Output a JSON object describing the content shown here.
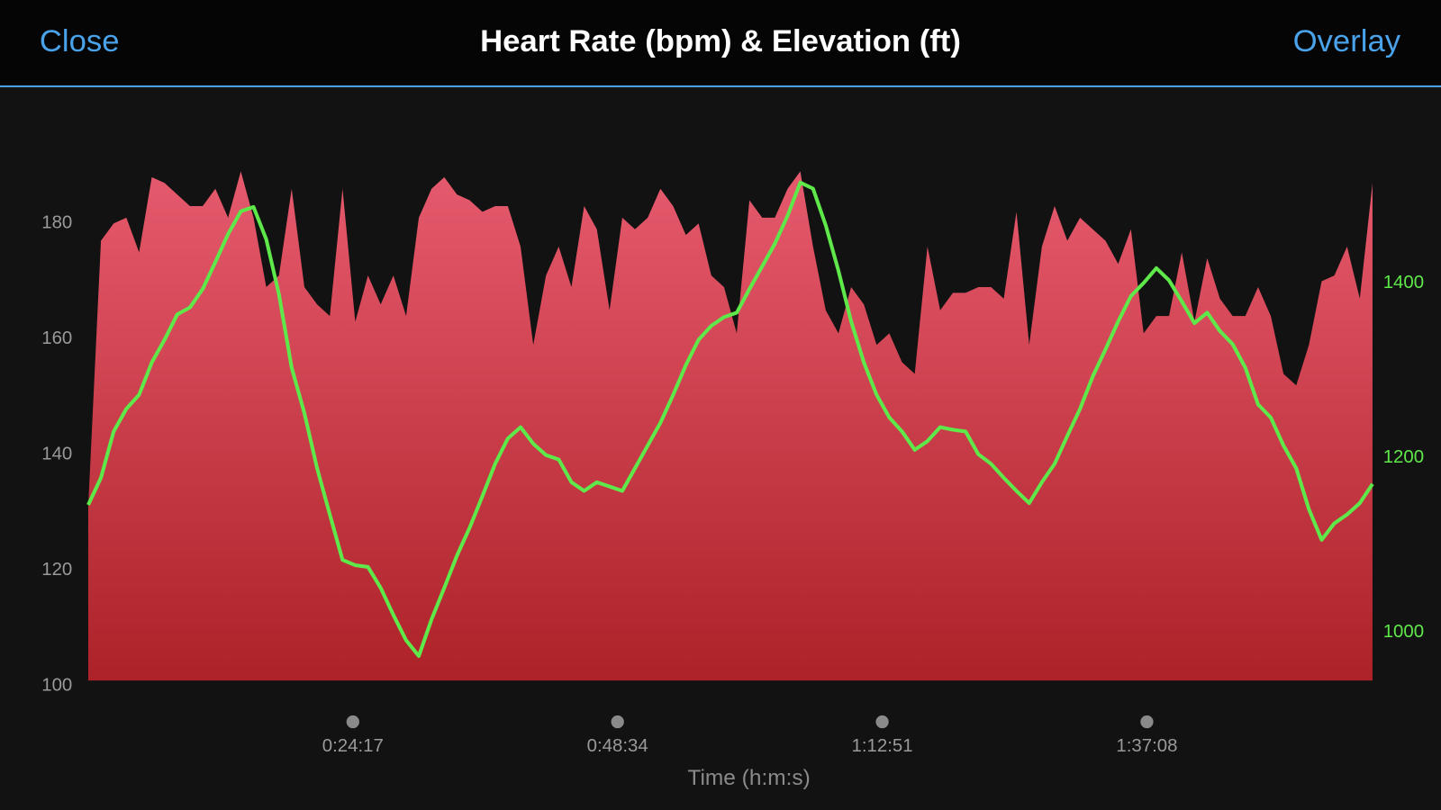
{
  "header": {
    "left_button": "Close",
    "title": "Heart Rate (bpm) & Elevation (ft)",
    "right_button": "Overlay"
  },
  "chart_data": {
    "type": "combo",
    "x_label": "Time (h:m:s)",
    "x": [
      0,
      70,
      140,
      210,
      280,
      350,
      420,
      490,
      560,
      630,
      700,
      770,
      840,
      910,
      980,
      1050,
      1120,
      1190,
      1260,
      1330,
      1400,
      1470,
      1540,
      1610,
      1680,
      1750,
      1820,
      1890,
      1960,
      2030,
      2100,
      2170,
      2240,
      2310,
      2380,
      2450,
      2520,
      2590,
      2660,
      2730,
      2800,
      2870,
      2940,
      3010,
      3080,
      3150,
      3220,
      3290,
      3360,
      3430,
      3500,
      3570,
      3640,
      3710,
      3780,
      3850,
      3920,
      3990,
      4060,
      4130,
      4200,
      4270,
      4340,
      4410,
      4480,
      4550,
      4620,
      4690,
      4760,
      4830,
      4900,
      4970,
      5040,
      5110,
      5180,
      5250,
      5320,
      5390,
      5460,
      5530,
      5600,
      5670,
      5740,
      5810,
      5880,
      5950,
      6020,
      6090,
      6160,
      6230,
      6300,
      6370,
      6440,
      6510,
      6580,
      6650,
      6720,
      6790,
      6860,
      6930,
      7000,
      7070
    ],
    "xlim": [
      0,
      7103
    ],
    "xticks": [
      {
        "value": 1457,
        "label": "0:24:17"
      },
      {
        "value": 2914,
        "label": "0:48:34"
      },
      {
        "value": 4371,
        "label": "1:12:51"
      },
      {
        "value": 5828,
        "label": "1:37:08"
      }
    ],
    "ylim": [
      100,
      190
    ],
    "yticks": [
      100,
      120,
      140,
      160,
      180
    ],
    "y2lim": [
      945,
      1541
    ],
    "y2ticks": [
      1000,
      1200,
      1400
    ],
    "series": [
      {
        "type": "area",
        "color": "#e65a6e",
        "values": [
          130,
          176,
          179,
          180,
          174,
          187,
          186,
          184,
          182,
          182,
          185,
          180,
          188,
          180,
          168,
          170,
          185,
          168,
          165,
          163,
          185,
          162,
          170,
          165,
          170,
          163,
          180,
          185,
          187,
          184,
          183,
          181,
          182,
          182,
          175,
          158,
          170,
          175,
          168,
          182,
          178,
          164,
          180,
          178,
          180,
          185,
          182,
          177,
          179,
          170,
          168,
          160,
          183,
          180,
          180,
          185,
          188,
          175,
          164,
          160,
          168,
          165,
          158,
          160,
          155,
          153,
          175,
          164,
          167,
          167,
          168,
          168,
          166,
          181,
          158,
          175,
          182,
          176,
          180,
          178,
          176,
          172,
          178,
          160,
          163,
          163,
          174,
          162,
          173,
          166,
          163,
          163,
          168,
          163,
          153,
          151,
          158,
          169,
          170,
          175,
          166,
          186
        ]
      },
      {
        "type": "line",
        "axis": "y2",
        "color": "#5fe84a",
        "values": [
          1146,
          1177,
          1230,
          1256,
          1272,
          1309,
          1335,
          1364,
          1372,
          1393,
          1424,
          1456,
          1482,
          1487,
          1450,
          1387,
          1303,
          1251,
          1188,
          1135,
          1083,
          1077,
          1075,
          1051,
          1020,
          991,
          973,
          1015,
          1051,
          1088,
          1120,
          1156,
          1193,
          1222,
          1235,
          1216,
          1203,
          1198,
          1172,
          1162,
          1172,
          1167,
          1162,
          1188,
          1214,
          1240,
          1272,
          1306,
          1335,
          1351,
          1361,
          1366,
          1393,
          1419,
          1445,
          1477,
          1515,
          1508,
          1466,
          1414,
          1356,
          1309,
          1272,
          1246,
          1230,
          1209,
          1219,
          1235,
          1232,
          1230,
          1204,
          1193,
          1177,
          1162,
          1148,
          1172,
          1193,
          1225,
          1256,
          1293,
          1324,
          1356,
          1385,
          1400,
          1417,
          1403,
          1379,
          1354,
          1366,
          1345,
          1330,
          1303,
          1261,
          1246,
          1214,
          1188,
          1141,
          1106,
          1125,
          1135,
          1148,
          1170
        ]
      }
    ]
  }
}
